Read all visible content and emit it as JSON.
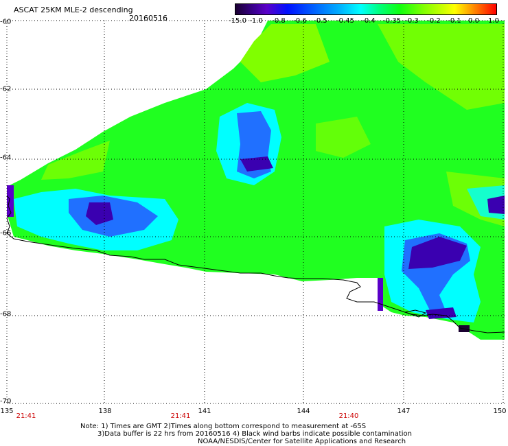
{
  "header": {
    "title": "ASCAT 25KM MLE-2 descending",
    "date": "20160516"
  },
  "colorbar": {
    "labels": [
      "-15.0",
      "-1.0",
      "-0.8",
      "-0.6",
      "-0.5",
      "-0.45",
      "-0.4",
      "-0.35",
      "-0.3",
      "-0.2",
      "-0.1",
      "0.0",
      "1.0"
    ]
  },
  "axes": {
    "lat_labels": [
      "-60",
      "-62",
      "-64",
      "-66",
      "-68",
      "-70"
    ],
    "lon_labels": [
      "135",
      "138",
      "141",
      "144",
      "147",
      "150"
    ],
    "time_labels": [
      "21:41",
      "21:41",
      "21:40"
    ]
  },
  "notes": {
    "line1": "Note: 1) Times are GMT 2)Times along bottom correspond to measurement at -65S",
    "line2": "3)Data buffer is 22 hrs from 20160516 4) Black wind barbs indicate possible contamination",
    "line3": "NOAA/NESDIS/Center for Satellite Applications and Research"
  },
  "colors": {
    "green": "#20ff20",
    "lime": "#80ff00",
    "cyan": "#00ffff",
    "blue": "#0040ff",
    "purple": "#5a00c8",
    "coast": "#000000"
  }
}
